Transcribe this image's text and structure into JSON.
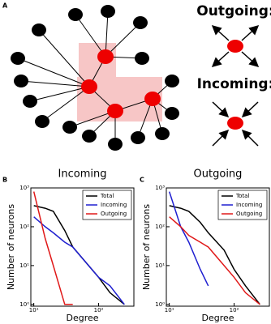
{
  "panels": [
    "A",
    "B",
    "C"
  ],
  "diagram": {
    "outgoing": "Outgoing:",
    "incoming": "Incoming:"
  },
  "chart_data": [
    {
      "type": "line",
      "title": "Incoming",
      "x_label": "Degree",
      "y_label": "Number of neurons",
      "x": [
        10,
        15,
        20,
        30,
        40,
        70,
        100,
        150,
        250
      ],
      "series": [
        {
          "name": "Total",
          "color": "#000000",
          "values": [
            350,
            300,
            250,
            80,
            30,
            10,
            5,
            2,
            1
          ]
        },
        {
          "name": "Incoming",
          "color": "#1f1fd0",
          "values": [
            180,
            100,
            70,
            40,
            30,
            10,
            5,
            3,
            1
          ]
        },
        {
          "name": "Outgoing",
          "color": "#e01818",
          "values": [
            800,
            50,
            10,
            1,
            1,
            null,
            null,
            null,
            null
          ]
        }
      ],
      "xlim": [
        9,
        350
      ],
      "ylim": [
        0.9,
        1000
      ],
      "log_x": true,
      "log_y": true,
      "xticks": [
        {
          "value": 10,
          "label": "10¹"
        },
        {
          "value": 100,
          "label": "10²"
        }
      ],
      "yticks": [
        {
          "value": 1,
          "label": "10⁰"
        },
        {
          "value": 10,
          "label": "10¹"
        },
        {
          "value": 100,
          "label": "10²"
        },
        {
          "value": 1000,
          "label": "10³"
        }
      ],
      "legend": "upper right"
    },
    {
      "type": "line",
      "title": "Outgoing",
      "x_label": "Degree",
      "y_label": "Number of neurons",
      "x": [
        10,
        15,
        20,
        30,
        40,
        70,
        100,
        150,
        250
      ],
      "series": [
        {
          "name": "Total",
          "color": "#000000",
          "values": [
            350,
            300,
            250,
            130,
            70,
            25,
            8,
            3,
            1
          ]
        },
        {
          "name": "Incoming",
          "color": "#1f1fd0",
          "values": [
            800,
            100,
            40,
            8,
            3,
            null,
            null,
            null,
            null
          ]
        },
        {
          "name": "Outgoing",
          "color": "#e01818",
          "values": [
            180,
            100,
            60,
            40,
            30,
            10,
            5,
            2,
            1
          ]
        }
      ],
      "xlim": [
        9,
        350
      ],
      "ylim": [
        0.9,
        1000
      ],
      "log_x": true,
      "log_y": true,
      "xticks": [
        {
          "value": 10,
          "label": "10¹"
        },
        {
          "value": 100,
          "label": "10²"
        }
      ],
      "yticks": [
        {
          "value": 1,
          "label": "10⁰"
        },
        {
          "value": 10,
          "label": "10¹"
        },
        {
          "value": 100,
          "label": "10²"
        },
        {
          "value": 1000,
          "label": "10³"
        }
      ],
      "legend": "upper right"
    }
  ]
}
